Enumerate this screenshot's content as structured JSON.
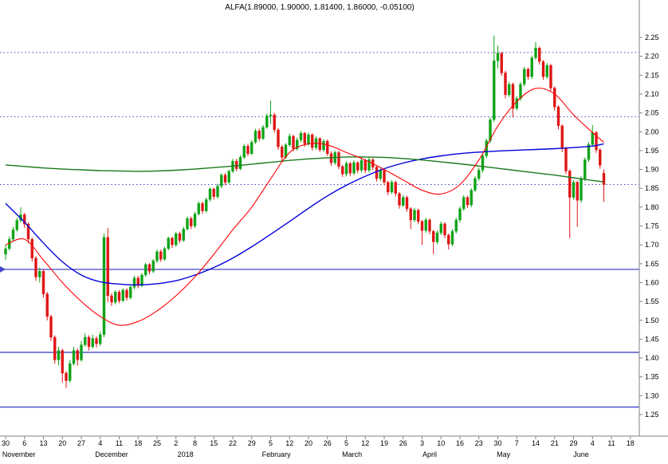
{
  "chart_data": {
    "type": "candlestick",
    "title": "ALFA(1.89000, 1.90000, 1.81400, 1.86000, -0.05100)",
    "symbol": "ALFA",
    "last_quote": {
      "open": "1.89000",
      "high": "1.90000",
      "low": "1.81400",
      "close": "1.86000",
      "change": "-0.05100"
    },
    "y_axis": {
      "min": 1.25,
      "max": 2.25,
      "step": 0.05,
      "ticks": [
        "2.25",
        "2.20",
        "2.15",
        "2.10",
        "2.05",
        "2.00",
        "1.95",
        "1.90",
        "1.85",
        "1.80",
        "1.75",
        "1.70",
        "1.65",
        "1.60",
        "1.55",
        "1.50",
        "1.45",
        "1.40",
        "1.35",
        "1.30",
        "1.25"
      ]
    },
    "x_axis": {
      "week_labels": [
        "30",
        "6",
        "13",
        "20",
        "27",
        "4",
        "11",
        "18",
        "25",
        "2",
        "8",
        "15",
        "22",
        "29",
        "5",
        "12",
        "20",
        "26",
        "5",
        "12",
        "19",
        "26",
        "3",
        "10",
        "16",
        "23",
        "30",
        "7",
        "14",
        "21",
        "29",
        "4",
        "11",
        "18"
      ],
      "months": [
        {
          "label": "November",
          "week": 0.7
        },
        {
          "label": "December",
          "week": 5.6
        },
        {
          "label": "2018",
          "week": 9.5
        },
        {
          "label": "February",
          "week": 14.3
        },
        {
          "label": "March",
          "week": 18.3
        },
        {
          "label": "April",
          "week": 22.4
        },
        {
          "label": "May",
          "week": 26.3
        },
        {
          "label": "June",
          "week": 30.4
        }
      ]
    },
    "levels": [
      {
        "name": "resistance-upper",
        "price": 2.21,
        "style": "dotted",
        "marker": false
      },
      {
        "name": "resistance-mid",
        "price": 2.04,
        "style": "dotted",
        "marker": false
      },
      {
        "name": "level-current",
        "price": 1.86,
        "style": "dotted",
        "marker": false
      },
      {
        "name": "support-upper",
        "price": 1.635,
        "style": "solid",
        "marker": true
      },
      {
        "name": "support-mid",
        "price": 1.415,
        "style": "solid",
        "marker": false
      },
      {
        "name": "support-lower",
        "price": 1.27,
        "style": "solid",
        "marker": false
      }
    ],
    "ma_sample_step": 5,
    "moving_averages": [
      {
        "name": "ma-medium-blue",
        "color": "#0000dd",
        "width": 1.4,
        "values": [
          1.81,
          1.76,
          1.705,
          1.655,
          1.62,
          1.602,
          1.596,
          1.594,
          1.597,
          1.605,
          1.62,
          1.64,
          1.665,
          1.695,
          1.728,
          1.762,
          1.797,
          1.83,
          1.858,
          1.882,
          1.902,
          1.917,
          1.928,
          1.936,
          1.942,
          1.946,
          1.949,
          1.951,
          1.953,
          1.955,
          1.958,
          1.962,
          1.968
        ]
      },
      {
        "name": "ma-slow-green",
        "color": "#1a7a1a",
        "width": 1.4,
        "values": [
          1.912,
          1.908,
          1.904,
          1.901,
          1.899,
          1.897,
          1.896,
          1.895,
          1.896,
          1.898,
          1.901,
          1.905,
          1.909,
          1.914,
          1.919,
          1.924,
          1.928,
          1.931,
          1.933,
          1.933,
          1.932,
          1.929,
          1.925,
          1.92,
          1.915,
          1.909,
          1.903,
          1.897,
          1.891,
          1.885,
          1.878,
          1.871,
          1.867
        ]
      },
      {
        "name": "ma-fast-red",
        "color": "#ff0000",
        "width": 1.1,
        "values": [
          1.7,
          1.715,
          1.66,
          1.6,
          1.55,
          1.51,
          1.487,
          1.497,
          1.525,
          1.565,
          1.615,
          1.675,
          1.74,
          1.8,
          1.875,
          1.945,
          1.968,
          1.965,
          1.945,
          1.925,
          1.9,
          1.872,
          1.845,
          1.835,
          1.86,
          1.925,
          2.015,
          2.08,
          2.115,
          2.1,
          2.045,
          1.998,
          1.972
        ]
      }
    ],
    "colors": {
      "up": "#0fa318",
      "down": "#df1616",
      "level": "#4545cc",
      "axis_line": "#808080",
      "text": "#000000"
    },
    "candles": [
      [
        1.675,
        1.7,
        1.66,
        1.69
      ],
      [
        1.69,
        1.722,
        1.685,
        1.715
      ],
      [
        1.715,
        1.748,
        1.71,
        1.74
      ],
      [
        1.74,
        1.772,
        1.735,
        1.765
      ],
      [
        1.765,
        1.8,
        1.76,
        1.78
      ],
      [
        1.78,
        1.785,
        1.745,
        1.755
      ],
      [
        1.755,
        1.76,
        1.705,
        1.715
      ],
      [
        1.715,
        1.72,
        1.655,
        1.665
      ],
      [
        1.665,
        1.67,
        1.605,
        1.615
      ],
      [
        1.615,
        1.64,
        1.6,
        1.63
      ],
      [
        1.63,
        1.635,
        1.56,
        1.57
      ],
      [
        1.57,
        1.575,
        1.5,
        1.51
      ],
      [
        1.51,
        1.515,
        1.445,
        1.455
      ],
      [
        1.455,
        1.46,
        1.385,
        1.395
      ],
      [
        1.395,
        1.43,
        1.38,
        1.42
      ],
      [
        1.42,
        1.425,
        1.335,
        1.36
      ],
      [
        1.36,
        1.365,
        1.32,
        1.34
      ],
      [
        1.34,
        1.395,
        1.335,
        1.385
      ],
      [
        1.385,
        1.43,
        1.38,
        1.42
      ],
      [
        1.42,
        1.425,
        1.38,
        1.395
      ],
      [
        1.395,
        1.445,
        1.39,
        1.435
      ],
      [
        1.435,
        1.465,
        1.43,
        1.455
      ],
      [
        1.455,
        1.46,
        1.42,
        1.43
      ],
      [
        1.43,
        1.462,
        1.425,
        1.452
      ],
      [
        1.452,
        1.458,
        1.428,
        1.438
      ],
      [
        1.438,
        1.47,
        1.432,
        1.462
      ],
      [
        1.462,
        1.73,
        1.455,
        1.72
      ],
      [
        1.72,
        1.745,
        1.548,
        1.565
      ],
      [
        1.565,
        1.572,
        1.538,
        1.548
      ],
      [
        1.548,
        1.58,
        1.542,
        1.575
      ],
      [
        1.575,
        1.58,
        1.545,
        1.552
      ],
      [
        1.552,
        1.585,
        1.548,
        1.58
      ],
      [
        1.58,
        1.585,
        1.552,
        1.56
      ],
      [
        1.56,
        1.592,
        1.555,
        1.588
      ],
      [
        1.588,
        1.618,
        1.582,
        1.612
      ],
      [
        1.612,
        1.618,
        1.585,
        1.592
      ],
      [
        1.592,
        1.625,
        1.588,
        1.62
      ],
      [
        1.62,
        1.652,
        1.615,
        1.648
      ],
      [
        1.648,
        1.652,
        1.622,
        1.63
      ],
      [
        1.63,
        1.662,
        1.625,
        1.658
      ],
      [
        1.658,
        1.688,
        1.652,
        1.682
      ],
      [
        1.682,
        1.688,
        1.655,
        1.662
      ],
      [
        1.662,
        1.695,
        1.658,
        1.69
      ],
      [
        1.69,
        1.722,
        1.685,
        1.718
      ],
      [
        1.718,
        1.722,
        1.692,
        1.7
      ],
      [
        1.7,
        1.735,
        1.695,
        1.73
      ],
      [
        1.73,
        1.735,
        1.705,
        1.712
      ],
      [
        1.712,
        1.748,
        1.708,
        1.742
      ],
      [
        1.742,
        1.775,
        1.738,
        1.77
      ],
      [
        1.77,
        1.775,
        1.742,
        1.75
      ],
      [
        1.75,
        1.788,
        1.745,
        1.782
      ],
      [
        1.782,
        1.815,
        1.778,
        1.81
      ],
      [
        1.81,
        1.815,
        1.782,
        1.79
      ],
      [
        1.79,
        1.825,
        1.785,
        1.82
      ],
      [
        1.82,
        1.852,
        1.815,
        1.848
      ],
      [
        1.848,
        1.852,
        1.82,
        1.828
      ],
      [
        1.828,
        1.862,
        1.822,
        1.856
      ],
      [
        1.856,
        1.89,
        1.85,
        1.885
      ],
      [
        1.885,
        1.89,
        1.858,
        1.866
      ],
      [
        1.866,
        1.9,
        1.862,
        1.895
      ],
      [
        1.895,
        1.928,
        1.89,
        1.922
      ],
      [
        1.922,
        1.928,
        1.895,
        1.902
      ],
      [
        1.902,
        1.938,
        1.898,
        1.932
      ],
      [
        1.932,
        1.968,
        1.928,
        1.962
      ],
      [
        1.962,
        1.968,
        1.935,
        1.942
      ],
      [
        1.942,
        1.978,
        1.938,
        1.972
      ],
      [
        1.972,
        2.008,
        1.968,
        2.002
      ],
      [
        2.002,
        2.008,
        1.975,
        1.982
      ],
      [
        1.982,
        2.018,
        1.978,
        2.012
      ],
      [
        2.012,
        2.048,
        2.008,
        2.042
      ],
      [
        2.042,
        2.082,
        2.02,
        2.045
      ],
      [
        2.045,
        2.05,
        1.998,
        2.005
      ],
      [
        2.005,
        2.01,
        1.952,
        1.96
      ],
      [
        1.96,
        1.965,
        1.92,
        1.932
      ],
      [
        1.932,
        1.97,
        1.928,
        1.965
      ],
      [
        1.965,
        1.995,
        1.96,
        1.988
      ],
      [
        1.988,
        1.992,
        1.948,
        1.955
      ],
      [
        1.955,
        1.985,
        1.95,
        1.978
      ],
      [
        1.978,
        2.002,
        1.972,
        1.996
      ],
      [
        1.996,
        2.0,
        1.96,
        1.968
      ],
      [
        1.968,
        1.998,
        1.962,
        1.992
      ],
      [
        1.992,
        1.996,
        1.95,
        1.958
      ],
      [
        1.958,
        1.988,
        1.952,
        1.982
      ],
      [
        1.982,
        1.986,
        1.946,
        1.952
      ],
      [
        1.952,
        1.98,
        1.946,
        1.975
      ],
      [
        1.975,
        1.98,
        1.936,
        1.942
      ],
      [
        1.942,
        1.948,
        1.91,
        1.918
      ],
      [
        1.918,
        1.95,
        1.912,
        1.945
      ],
      [
        1.945,
        1.95,
        1.9,
        1.908
      ],
      [
        1.908,
        1.912,
        1.88,
        1.888
      ],
      [
        1.888,
        1.922,
        1.882,
        1.916
      ],
      [
        1.916,
        1.92,
        1.882,
        1.89
      ],
      [
        1.89,
        1.924,
        1.885,
        1.918
      ],
      [
        1.918,
        1.922,
        1.89,
        1.898
      ],
      [
        1.898,
        1.93,
        1.892,
        1.924
      ],
      [
        1.924,
        1.928,
        1.89,
        1.898
      ],
      [
        1.898,
        1.932,
        1.892,
        1.926
      ],
      [
        1.926,
        1.93,
        1.898,
        1.906
      ],
      [
        1.906,
        1.91,
        1.868,
        1.876
      ],
      [
        1.876,
        1.904,
        1.87,
        1.898
      ],
      [
        1.898,
        1.902,
        1.858,
        1.866
      ],
      [
        1.866,
        1.87,
        1.832,
        1.84
      ],
      [
        1.84,
        1.872,
        1.835,
        1.866
      ],
      [
        1.866,
        1.87,
        1.828,
        1.836
      ],
      [
        1.836,
        1.84,
        1.796,
        1.805
      ],
      [
        1.805,
        1.832,
        1.8,
        1.826
      ],
      [
        1.826,
        1.83,
        1.788,
        1.796
      ],
      [
        1.796,
        1.8,
        1.742,
        1.766
      ],
      [
        1.766,
        1.798,
        1.76,
        1.792
      ],
      [
        1.792,
        1.796,
        1.755,
        1.762
      ],
      [
        1.762,
        1.766,
        1.7,
        1.738
      ],
      [
        1.738,
        1.772,
        1.732,
        1.766
      ],
      [
        1.766,
        1.77,
        1.728,
        1.736
      ],
      [
        1.736,
        1.74,
        1.675,
        1.708
      ],
      [
        1.708,
        1.738,
        1.702,
        1.732
      ],
      [
        1.732,
        1.762,
        1.726,
        1.756
      ],
      [
        1.756,
        1.76,
        1.718,
        1.726
      ],
      [
        1.726,
        1.73,
        1.688,
        1.702
      ],
      [
        1.702,
        1.742,
        1.696,
        1.736
      ],
      [
        1.736,
        1.772,
        1.73,
        1.766
      ],
      [
        1.766,
        1.802,
        1.76,
        1.796
      ],
      [
        1.796,
        1.832,
        1.79,
        1.826
      ],
      [
        1.826,
        1.83,
        1.798,
        1.806
      ],
      [
        1.806,
        1.85,
        1.8,
        1.845
      ],
      [
        1.845,
        1.882,
        1.84,
        1.876
      ],
      [
        1.876,
        1.905,
        1.87,
        1.898
      ],
      [
        1.898,
        1.942,
        1.892,
        1.936
      ],
      [
        1.936,
        1.982,
        1.93,
        1.976
      ],
      [
        1.976,
        2.038,
        1.97,
        2.032
      ],
      [
        2.032,
        2.255,
        2.026,
        2.188
      ],
      [
        2.188,
        2.228,
        2.168,
        2.208
      ],
      [
        2.208,
        2.212,
        2.148,
        2.156
      ],
      [
        2.156,
        2.162,
        2.088,
        2.098
      ],
      [
        2.098,
        2.132,
        2.092,
        2.126
      ],
      [
        2.126,
        2.13,
        2.038,
        2.062
      ],
      [
        2.062,
        2.094,
        2.056,
        2.088
      ],
      [
        2.088,
        2.132,
        2.082,
        2.126
      ],
      [
        2.126,
        2.172,
        2.12,
        2.166
      ],
      [
        2.166,
        2.17,
        2.138,
        2.146
      ],
      [
        2.146,
        2.202,
        2.14,
        2.196
      ],
      [
        2.196,
        2.238,
        2.19,
        2.222
      ],
      [
        2.222,
        2.226,
        2.178,
        2.186
      ],
      [
        2.186,
        2.19,
        2.138,
        2.146
      ],
      [
        2.146,
        2.182,
        2.14,
        2.176
      ],
      [
        2.176,
        2.18,
        2.108,
        2.116
      ],
      [
        2.116,
        2.12,
        2.056,
        2.066
      ],
      [
        2.066,
        2.07,
        2.006,
        2.016
      ],
      [
        2.016,
        2.02,
        1.946,
        1.956
      ],
      [
        1.956,
        1.96,
        1.888,
        1.896
      ],
      [
        1.896,
        1.9,
        1.718,
        1.826
      ],
      [
        1.826,
        1.872,
        1.82,
        1.866
      ],
      [
        1.866,
        1.87,
        1.748,
        1.818
      ],
      [
        1.818,
        1.882,
        1.812,
        1.876
      ],
      [
        1.876,
        1.932,
        1.87,
        1.926
      ],
      [
        1.926,
        1.972,
        1.92,
        1.966
      ],
      [
        1.966,
        2.018,
        1.96,
        1.998
      ],
      [
        1.998,
        2.002,
        1.944,
        1.952
      ],
      [
        1.952,
        1.956,
        1.902,
        1.911
      ],
      [
        1.89,
        1.9,
        1.814,
        1.86
      ]
    ]
  }
}
